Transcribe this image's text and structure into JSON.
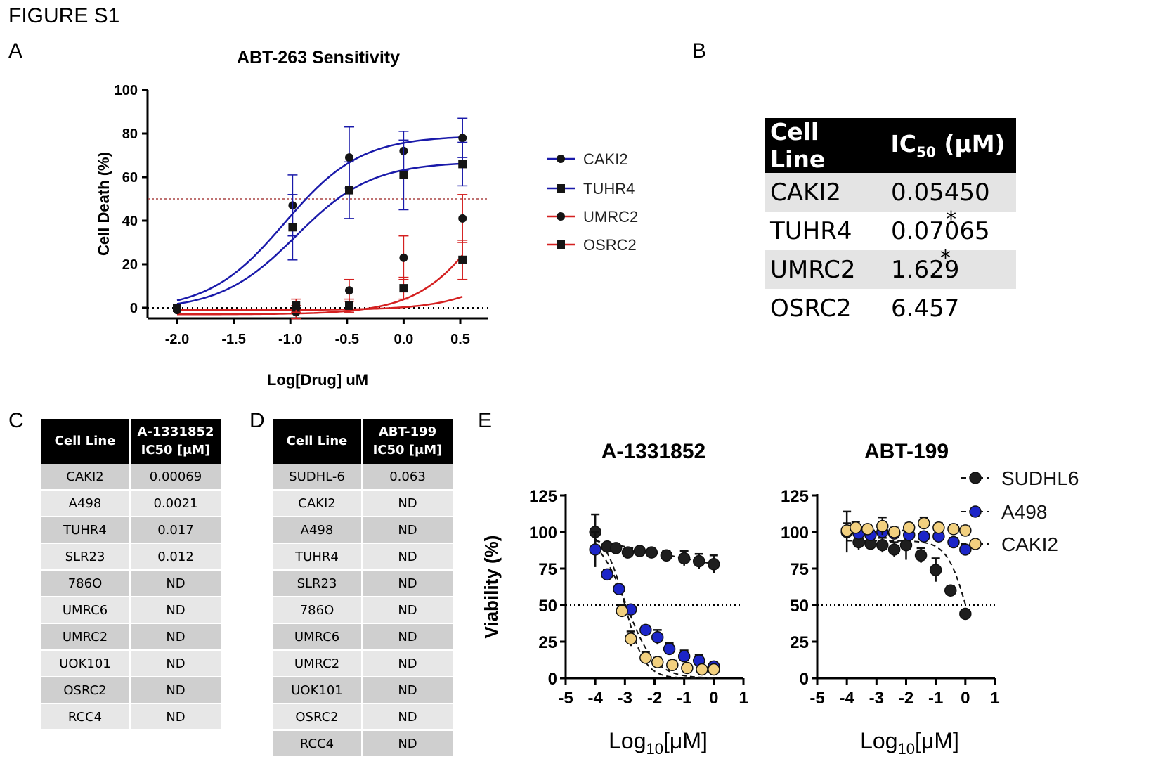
{
  "figure_title": "FIGURE S1",
  "panels": {
    "A": "A",
    "B": "B",
    "C": "C",
    "D": "D",
    "E": "E"
  },
  "colors": {
    "blue": "#1a1aaa",
    "red": "#d42020",
    "black": "#111111",
    "navy": "#1a1a6e",
    "darkred": "#8a1010",
    "yellow": "#f2d07f",
    "bluefill": "#1c25c8"
  },
  "chart_data": [
    {
      "id": "A",
      "type": "line",
      "title": "ABT-263 Sensitivity",
      "xlabel": "Log[Drug] uM",
      "ylabel": "Cell Death (%)",
      "xlim": [
        -2.25,
        0.75
      ],
      "ylim": [
        -5,
        100
      ],
      "xticks": [
        -2.0,
        -1.5,
        -1.0,
        -0.5,
        0.0,
        0.5
      ],
      "xtick_labels": [
        "-2.0",
        "-1.5",
        "-1.0",
        "-0.5",
        "0.0",
        "0.5"
      ],
      "yticks": [
        0,
        20,
        40,
        60,
        80,
        100
      ],
      "ytick_labels": [
        "0",
        "20",
        "40",
        "60",
        "80",
        "100"
      ],
      "reference_lines": [
        50,
        0
      ],
      "series": [
        {
          "name": "CAKI2",
          "marker": "circle",
          "x": [
            -2.0,
            -0.98,
            -0.48,
            0.0,
            0.52
          ],
          "y": [
            0,
            47,
            69,
            72,
            78
          ],
          "err": [
            0,
            14,
            14,
            9,
            9
          ]
        },
        {
          "name": "TUHR4",
          "marker": "square",
          "x": [
            -2.0,
            -0.98,
            -0.48,
            0.0,
            0.52
          ],
          "y": [
            0,
            37,
            54,
            61,
            66
          ],
          "err": [
            0,
            15,
            13,
            16,
            10
          ]
        },
        {
          "name": "UMRC2",
          "marker": "circle",
          "x": [
            -2.0,
            -0.95,
            -0.48,
            0.0,
            0.52
          ],
          "y": [
            -1,
            -2,
            8,
            23,
            41
          ],
          "err": [
            0,
            3,
            5,
            10,
            11
          ]
        },
        {
          "name": "OSRC2",
          "marker": "square",
          "x": [
            -2.0,
            -0.95,
            -0.48,
            0.0,
            0.52
          ],
          "y": [
            0,
            1,
            1,
            9,
            22
          ],
          "err": [
            0,
            3,
            3,
            5,
            9
          ]
        }
      ]
    },
    {
      "id": "E1",
      "type": "scatter",
      "title": "A-1331852",
      "xlabel": "Log10[μM]",
      "ylabel": "Viability (%)",
      "xlim": [
        -5,
        1
      ],
      "ylim": [
        0,
        125
      ],
      "xticks": [
        -5,
        -4,
        -3,
        -2,
        -1,
        0,
        1
      ],
      "xtick_labels": [
        "-5",
        "-4",
        "-3",
        "-2",
        "-1",
        "0",
        "1"
      ],
      "yticks": [
        0,
        25,
        50,
        75,
        100,
        125
      ],
      "ytick_labels": [
        "0",
        "25",
        "50",
        "75",
        "100",
        "125"
      ],
      "reference_line": 50,
      "series": [
        {
          "name": "SUDHL6",
          "x": [
            -4.0,
            -3.6,
            -3.3,
            -2.9,
            -2.5,
            -2.1,
            -1.6,
            -1.0,
            -0.5,
            0.0
          ],
          "y": [
            100,
            90,
            89,
            86,
            87,
            86,
            84,
            82,
            80,
            78
          ],
          "err": [
            12,
            2,
            2,
            2,
            2,
            2,
            3,
            5,
            5,
            6
          ]
        },
        {
          "name": "A498",
          "x": [
            -4.0,
            -3.6,
            -3.2,
            -2.8,
            -2.3,
            -1.9,
            -1.5,
            -1.0,
            -0.5,
            0.0
          ],
          "y": [
            88,
            71,
            61,
            47,
            33,
            28,
            20,
            15,
            12,
            8
          ],
          "err": [
            12,
            3,
            3,
            3,
            3,
            5,
            4,
            4,
            4,
            3
          ]
        },
        {
          "name": "CAKI2",
          "x": [
            -3.1,
            -2.8,
            -2.3,
            -1.9,
            -1.4,
            -0.9,
            -0.4,
            0.0
          ],
          "y": [
            46,
            27,
            14,
            11,
            9,
            7,
            6,
            6
          ],
          "err": [
            4,
            5,
            4,
            3,
            3,
            2,
            2,
            2
          ]
        }
      ]
    },
    {
      "id": "E2",
      "type": "scatter",
      "title": "ABT-199",
      "xlabel": "Log10[μM]",
      "ylabel": "",
      "xlim": [
        -5,
        1
      ],
      "ylim": [
        0,
        125
      ],
      "xticks": [
        -5,
        -4,
        -3,
        -2,
        -1,
        0,
        1
      ],
      "xtick_labels": [
        "-5",
        "-4",
        "-3",
        "-2",
        "-1",
        "0",
        "1"
      ],
      "yticks": [
        0,
        25,
        50,
        75,
        100,
        125
      ],
      "ytick_labels": [
        "0",
        "25",
        "50",
        "75",
        "100",
        "125"
      ],
      "reference_line": 50,
      "series": [
        {
          "name": "SUDHL6",
          "x": [
            -4.0,
            -3.6,
            -3.2,
            -2.8,
            -2.4,
            -2.0,
            -1.5,
            -1.0,
            -0.5,
            0.0
          ],
          "y": [
            100,
            93,
            92,
            91,
            88,
            91,
            84,
            74,
            60,
            44
          ],
          "err": [
            14,
            5,
            4,
            5,
            5,
            10,
            5,
            8,
            3,
            2
          ]
        },
        {
          "name": "A498",
          "x": [
            -3.6,
            -3.2,
            -2.8,
            -2.4,
            -1.9,
            -1.4,
            -0.9,
            -0.4,
            0.0
          ],
          "y": [
            99,
            98,
            100,
            99,
            98,
            97,
            97,
            93,
            88
          ],
          "err": [
            4,
            3,
            3,
            3,
            3,
            3,
            3,
            3,
            3
          ]
        },
        {
          "name": "CAKI2",
          "x": [
            -4.0,
            -3.7,
            -3.3,
            -2.8,
            -2.4,
            -1.9,
            -1.4,
            -0.9,
            -0.4,
            0.0
          ],
          "y": [
            101,
            103,
            102,
            104,
            100,
            103,
            106,
            103,
            102,
            101
          ],
          "err": [
            5,
            4,
            3,
            6,
            3,
            3,
            4,
            3,
            3,
            3
          ]
        }
      ]
    }
  ],
  "legend_A": [
    "CAKI2",
    "TUHR4",
    "UMRC2",
    "OSRC2"
  ],
  "legend_E": [
    "SUDHL6",
    "A498",
    "CAKI2"
  ],
  "table_B": {
    "header_cell_line": "Cell Line",
    "header_ic_main": "IC",
    "header_ic_sub": "50",
    "header_ic_unit": " (μM)",
    "rows": [
      {
        "cell": "CAKI2",
        "value": "0.05450",
        "star": ""
      },
      {
        "cell": "TUHR4",
        "value": "0.07065",
        "star": "*"
      },
      {
        "cell": "UMRC2",
        "value": "1.629",
        "star": "*"
      },
      {
        "cell": "OSRC2",
        "value": "6.457",
        "star": ""
      }
    ]
  },
  "table_C": {
    "header_cell_line": "Cell Line",
    "header_drug": "A-1331852",
    "header_unit": "IC50 [μM]",
    "rows": [
      [
        "CAKI2",
        "0.00069"
      ],
      [
        "A498",
        "0.0021"
      ],
      [
        "TUHR4",
        "0.017"
      ],
      [
        "SLR23",
        "0.012"
      ],
      [
        "786O",
        "ND"
      ],
      [
        "UMRC6",
        "ND"
      ],
      [
        "UMRC2",
        "ND"
      ],
      [
        "UOK101",
        "ND"
      ],
      [
        "OSRC2",
        "ND"
      ],
      [
        "RCC4",
        "ND"
      ]
    ]
  },
  "table_D": {
    "header_cell_line": "Cell Line",
    "header_drug": "ABT-199",
    "header_unit": "IC50 [μM]",
    "rows": [
      [
        "SUDHL-6",
        "0.063"
      ],
      [
        "CAKI2",
        "ND"
      ],
      [
        "A498",
        "ND"
      ],
      [
        "TUHR4",
        "ND"
      ],
      [
        "SLR23",
        "ND"
      ],
      [
        "786O",
        "ND"
      ],
      [
        "UMRC6",
        "ND"
      ],
      [
        "UMRC2",
        "ND"
      ],
      [
        "UOK101",
        "ND"
      ],
      [
        "OSRC2",
        "ND"
      ],
      [
        "RCC4",
        "ND"
      ]
    ]
  }
}
